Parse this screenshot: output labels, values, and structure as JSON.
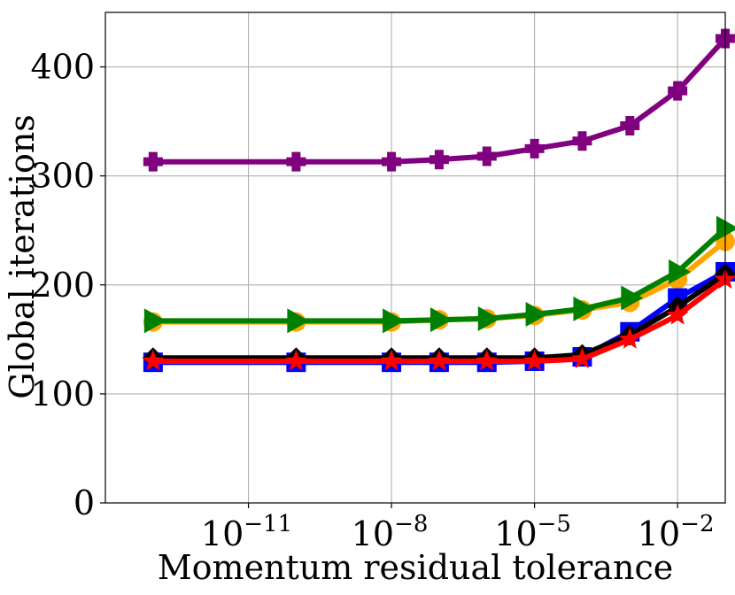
{
  "chart_data": {
    "type": "line",
    "xlabel": "Momentum residual tolerance",
    "ylabel": "Global iterations",
    "xscale": "log",
    "xlim": [
      1e-14,
      0.1
    ],
    "ylim": [
      0,
      450
    ],
    "grid": true,
    "x_ticks": [
      {
        "value": 1e-11,
        "base": "10",
        "exp": "−11"
      },
      {
        "value": 1e-08,
        "base": "10",
        "exp": "−8"
      },
      {
        "value": 1e-05,
        "base": "10",
        "exp": "−5"
      },
      {
        "value": 0.01,
        "base": "10",
        "exp": "−2"
      }
    ],
    "y_ticks": [
      {
        "value": 0,
        "label": "0"
      },
      {
        "value": 100,
        "label": "100"
      },
      {
        "value": 200,
        "label": "200"
      },
      {
        "value": 300,
        "label": "300"
      },
      {
        "value": 400,
        "label": "400"
      }
    ],
    "x": [
      1e-13,
      1e-10,
      1e-08,
      1e-07,
      1e-06,
      1e-05,
      0.0001,
      0.001,
      0.01,
      0.1
    ],
    "series": [
      {
        "color": "#800080",
        "marker": "plus",
        "values": [
          313,
          313,
          313,
          315,
          318,
          325,
          332,
          346,
          378,
          426
        ]
      },
      {
        "color": "#ffa500",
        "marker": "circle",
        "values": [
          166,
          166,
          166,
          168,
          169,
          172,
          177,
          184,
          205,
          240
        ]
      },
      {
        "color": "#008000",
        "marker": "triangle-right",
        "values": [
          167,
          167,
          167,
          168,
          169,
          173,
          178,
          188,
          212,
          252
        ]
      },
      {
        "color": "#0000ff",
        "marker": "square",
        "values": [
          129,
          129,
          129,
          129,
          129,
          130,
          134,
          157,
          188,
          212
        ]
      },
      {
        "color": "#000000",
        "marker": "cross-diamond",
        "values": [
          133,
          133,
          133,
          133,
          133,
          133,
          136,
          154,
          180,
          210
        ]
      },
      {
        "color": "#ff0000",
        "marker": "star",
        "values": [
          130,
          130,
          130,
          130,
          130,
          130,
          132,
          150,
          172,
          205
        ]
      }
    ]
  }
}
